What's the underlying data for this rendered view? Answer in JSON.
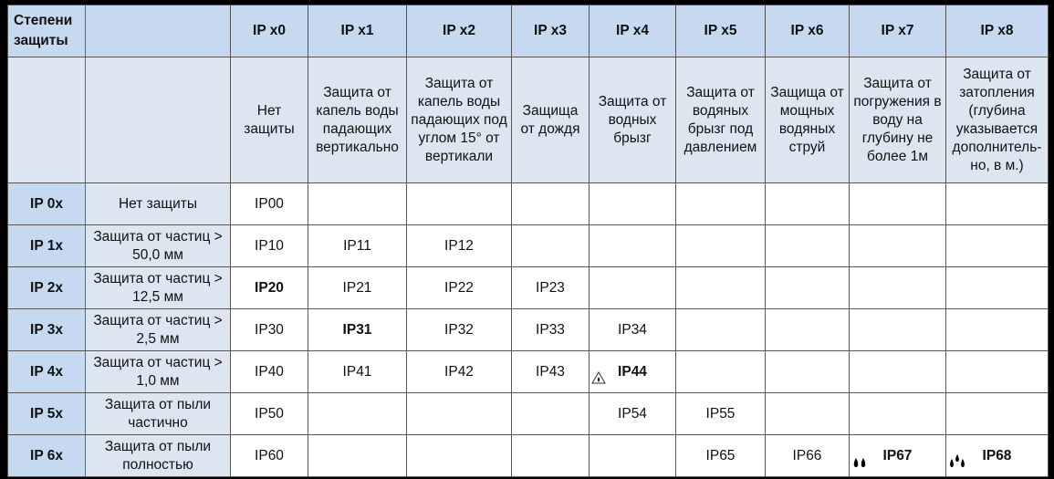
{
  "table": {
    "corner": "Степени защиты",
    "header_codes": [
      "",
      "IP x0",
      "IP x1",
      "IP x2",
      "IP x3",
      "IP x4",
      "IP x5",
      "IP x6",
      "IP x7",
      "IP x8"
    ],
    "header_desc": [
      "",
      "Нет защиты",
      "Защита от капель воды падающих вертикально",
      "Защита от капель воды падающих под углом 15° от вертикали",
      "Защища от дождя",
      "Защита от водных брызг",
      "Защита от водяных брызг под давлением",
      "Защища от мощных водяных струй",
      "Защита от погружения в воду на глубину не более 1м",
      "Защита от затопления (глубина указывается дополнитель-но, в м.)"
    ],
    "rows": [
      {
        "code": "IP 0x",
        "desc": "Нет защиты",
        "cells": [
          "IP00",
          "",
          "",
          "",
          "",
          "",
          "",
          "",
          ""
        ]
      },
      {
        "code": "IP 1x",
        "desc": "Защита от частиц > 50,0 мм",
        "cells": [
          "IP10",
          "IP11",
          "IP12",
          "",
          "",
          "",
          "",
          "",
          ""
        ]
      },
      {
        "code": "IP 2x",
        "desc": "Защита от частиц > 12,5 мм",
        "cells": [
          "IP20",
          "IP21",
          "IP22",
          "IP23",
          "",
          "",
          "",
          "",
          ""
        ]
      },
      {
        "code": "IP 3x",
        "desc": "Защита от частиц > 2,5 мм",
        "cells": [
          "IP30",
          "IP31",
          "IP32",
          "IP33",
          "IP34",
          "",
          "",
          "",
          ""
        ]
      },
      {
        "code": "IP 4x",
        "desc": "Защита от частиц > 1,0 мм",
        "cells": [
          "IP40",
          "IP41",
          "IP42",
          "IP43",
          "IP44",
          "",
          "",
          "",
          ""
        ]
      },
      {
        "code": "IP 5x",
        "desc": "Защита от пыли частично",
        "cells": [
          "IP50",
          "",
          "",
          "",
          "IP54",
          "IP55",
          "",
          "",
          ""
        ]
      },
      {
        "code": "IP 6x",
        "desc": "Защита от пыли полностью",
        "cells": [
          "IP60",
          "",
          "",
          "",
          "",
          "IP65",
          "IP66",
          "IP67",
          "IP68"
        ]
      }
    ],
    "bold_cells": [
      "IP20",
      "IP31",
      "IP44",
      "IP67",
      "IP68"
    ],
    "cell_icons": {
      "IP44": "warning-triangle-drop-icon",
      "IP67": "two-drops-icon",
      "IP68": "three-drops-icon"
    }
  },
  "colors": {
    "header_bg": "#c6d9f0",
    "subheader_bg": "#dde6f0",
    "frame": "#000000"
  }
}
